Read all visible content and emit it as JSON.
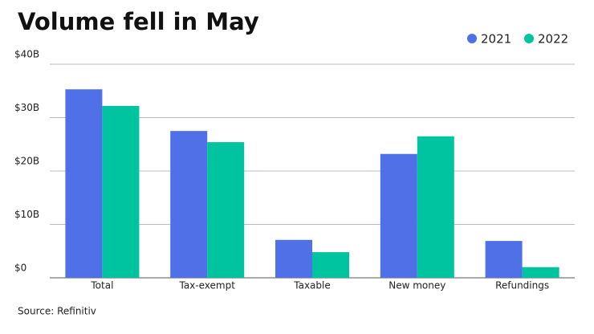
{
  "chart_data": {
    "type": "bar",
    "title": "Volume fell in May",
    "source": "Source: Refinitiv",
    "categories": [
      "Total",
      "Tax-exempt",
      "Taxable",
      "New money",
      "Refundings"
    ],
    "series": [
      {
        "name": "2021",
        "color": "#5070e8",
        "values": [
          35.3,
          27.5,
          7.1,
          23.2,
          6.9
        ]
      },
      {
        "name": "2022",
        "color": "#00c3a0",
        "values": [
          32.2,
          25.4,
          4.8,
          26.5,
          2.0
        ]
      }
    ],
    "ylim": [
      0,
      40
    ],
    "yticks": [
      {
        "value": 0,
        "label": "$0"
      },
      {
        "value": 10,
        "label": "$10B"
      },
      {
        "value": 20,
        "label": "$20B"
      },
      {
        "value": 30,
        "label": "$30B"
      },
      {
        "value": 40,
        "label": "$40B"
      }
    ],
    "grid": true
  }
}
